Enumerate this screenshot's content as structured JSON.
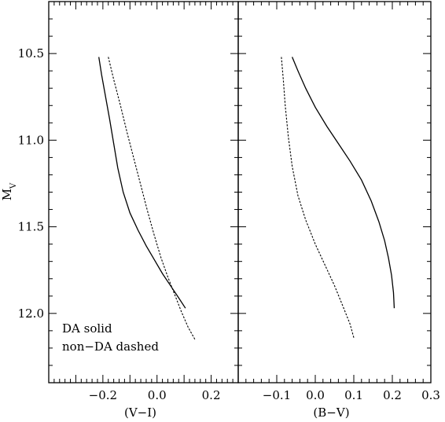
{
  "figure": {
    "ylabel": "M",
    "ylabel_sub": "V",
    "yticks": [
      "10.5",
      "11.0",
      "11.5",
      "12.0"
    ],
    "annotation_lines": [
      "DA solid",
      "non−DA dashed"
    ]
  },
  "chart_data": [
    {
      "type": "line",
      "panel": "left",
      "xlabel": "(V−I)",
      "ylabel": "M_V",
      "xlim": [
        -0.4,
        0.3
      ],
      "ylim": [
        12.4,
        10.2
      ],
      "y_inverted": true,
      "xticks": [
        "−0.2",
        "0.0",
        "0.2"
      ],
      "xtick_values": [
        -0.2,
        0.0,
        0.2
      ],
      "series": [
        {
          "style": "solid",
          "x": [
            -0.215,
            -0.205,
            -0.19,
            -0.175,
            -0.16,
            -0.145,
            -0.125,
            -0.1,
            -0.07,
            -0.04,
            -0.01,
            0.02,
            0.05,
            0.08,
            0.105
          ],
          "y": [
            10.52,
            10.62,
            10.75,
            10.88,
            11.02,
            11.16,
            11.3,
            11.42,
            11.52,
            11.61,
            11.69,
            11.77,
            11.84,
            11.91,
            11.97
          ]
        },
        {
          "style": "dashed",
          "x": [
            -0.18,
            -0.16,
            -0.135,
            -0.11,
            -0.085,
            -0.06,
            -0.035,
            -0.01,
            0.015,
            0.04,
            0.065,
            0.09,
            0.115,
            0.14
          ],
          "y": [
            10.52,
            10.65,
            10.8,
            10.96,
            11.11,
            11.26,
            11.41,
            11.55,
            11.68,
            11.79,
            11.89,
            11.99,
            12.08,
            12.15
          ]
        }
      ]
    },
    {
      "type": "line",
      "panel": "right",
      "xlabel": "(B−V)",
      "ylabel": "",
      "xlim": [
        -0.2,
        0.3
      ],
      "ylim": [
        12.4,
        10.2
      ],
      "y_inverted": true,
      "xticks": [
        "−0.1",
        "0.0",
        "0.1",
        "0.2",
        "0.3"
      ],
      "xtick_values": [
        -0.1,
        0.0,
        0.1,
        0.2,
        0.3
      ],
      "series": [
        {
          "style": "solid",
          "x": [
            -0.06,
            -0.045,
            -0.025,
            0.0,
            0.03,
            0.06,
            0.09,
            0.12,
            0.145,
            0.165,
            0.18,
            0.19,
            0.198,
            0.203,
            0.205
          ],
          "y": [
            10.52,
            10.6,
            10.7,
            10.81,
            10.92,
            11.02,
            11.12,
            11.23,
            11.35,
            11.47,
            11.58,
            11.68,
            11.78,
            11.88,
            11.97
          ]
        },
        {
          "style": "dashed",
          "x": [
            -0.088,
            -0.083,
            -0.078,
            -0.07,
            -0.06,
            -0.045,
            -0.025,
            0.0,
            0.025,
            0.05,
            0.072,
            0.09,
            0.1
          ],
          "y": [
            10.52,
            10.65,
            10.8,
            10.98,
            11.15,
            11.32,
            11.46,
            11.6,
            11.72,
            11.84,
            11.96,
            12.06,
            12.14
          ]
        }
      ]
    }
  ]
}
